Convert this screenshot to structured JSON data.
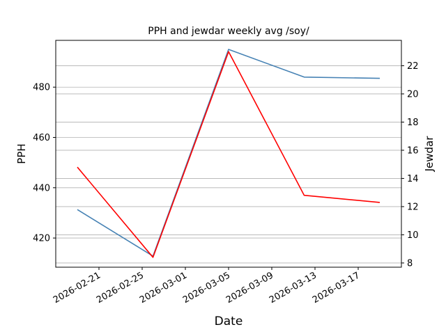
{
  "chart_data": {
    "type": "line",
    "title": "PPH and jewdar weekly avg /soy/",
    "xlabel": "Date",
    "ylabel_left": "PPH",
    "ylabel_right": "Jewdar",
    "x": [
      "2026-02-19",
      "2026-02-26",
      "2026-03-05",
      "2026-03-12",
      "2026-03-19"
    ],
    "series": [
      {
        "axis": "left",
        "color": "#4682b4",
        "values": [
          431.3,
          412.8,
          495.0,
          484.0,
          483.5
        ]
      },
      {
        "axis": "right",
        "color": "#ff0000",
        "values": [
          14.8,
          8.4,
          23.0,
          12.8,
          12.3
        ]
      }
    ],
    "xlim": [
      "2026-02-17",
      "2026-03-21"
    ],
    "ylim_left": [
      408.4,
      498.6
    ],
    "ylim_right": [
      7.7,
      23.8
    ],
    "xticks": [
      "2026-02-21",
      "2026-02-25",
      "2026-03-01",
      "2026-03-05",
      "2026-03-09",
      "2026-03-13",
      "2026-03-17"
    ],
    "yticks_left": [
      420,
      440,
      460,
      480
    ],
    "yticks_right": [
      8,
      10,
      12,
      14,
      16,
      18,
      20,
      22
    ],
    "grid": true
  }
}
